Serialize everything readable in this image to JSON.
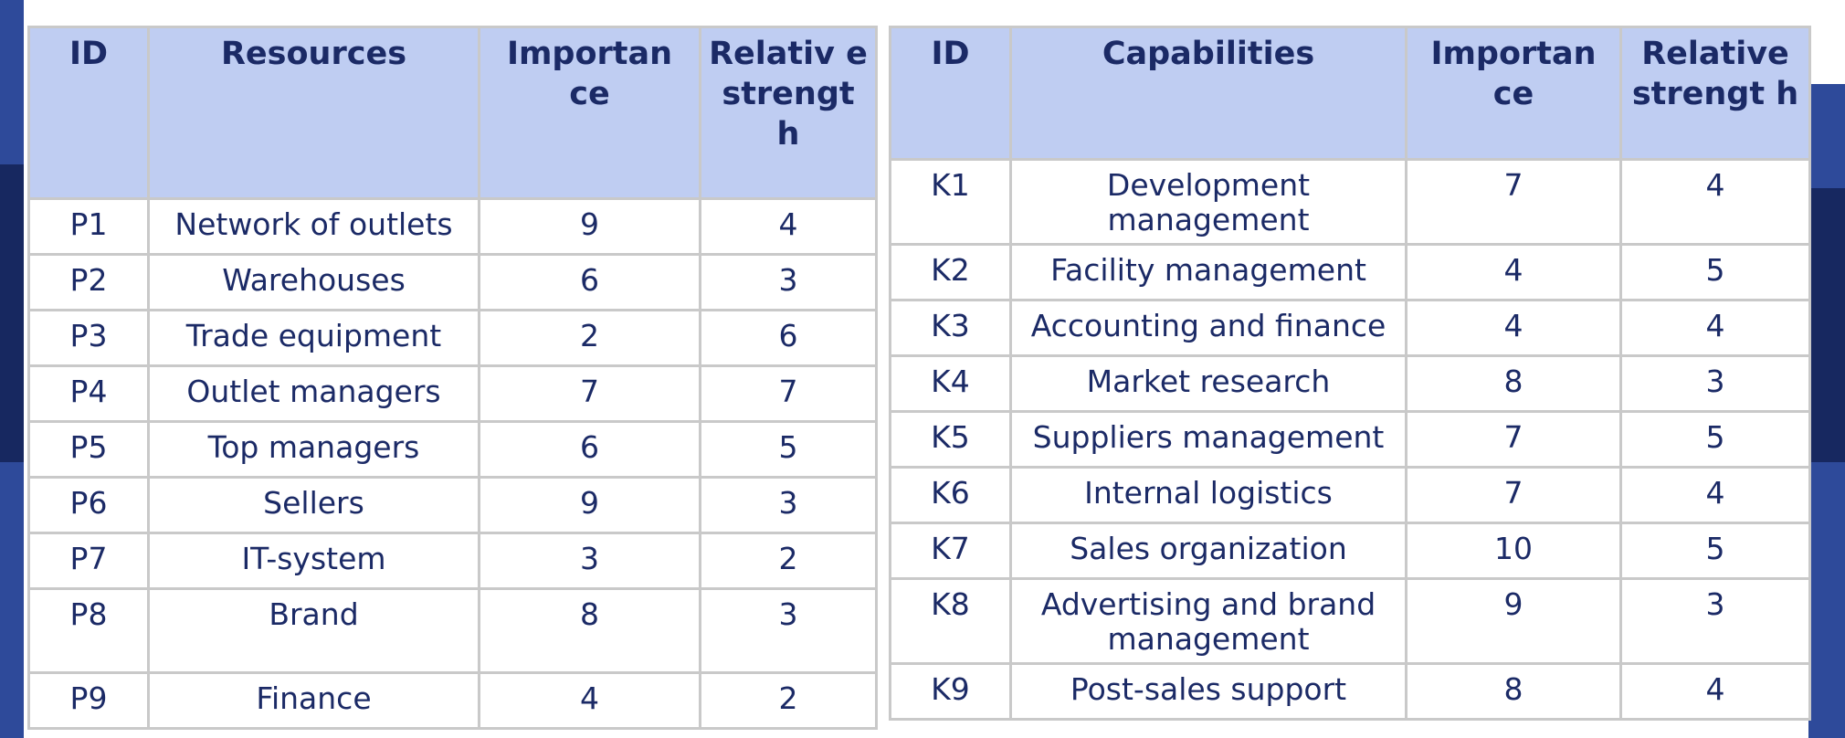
{
  "left_table": {
    "headers": [
      "ID",
      "Resources",
      "Importan ce",
      "Relativ e strengt h"
    ],
    "rows": [
      [
        "P1",
        "Network of outlets",
        "9",
        "4"
      ],
      [
        "P2",
        "Warehouses",
        "6",
        "3"
      ],
      [
        "P3",
        "Trade equipment",
        "2",
        "6"
      ],
      [
        "P4",
        "Outlet managers",
        "7",
        "7"
      ],
      [
        "P5",
        "Top managers",
        "6",
        "5"
      ],
      [
        "P6",
        "Sellers",
        "9",
        "3"
      ],
      [
        "P7",
        "IT-system",
        "3",
        "2"
      ],
      [
        "P8",
        "Brand",
        "8",
        "3"
      ],
      [
        "P9",
        "Finance",
        "4",
        "2"
      ]
    ]
  },
  "right_table": {
    "headers": [
      "ID",
      "Capabilities",
      "Importan ce",
      "Relative strengt h"
    ],
    "rows": [
      [
        "K1",
        "Development management",
        "7",
        "4"
      ],
      [
        "K2",
        "Facility management",
        "4",
        "5"
      ],
      [
        "K3",
        "Accounting and finance",
        "4",
        "4"
      ],
      [
        "K4",
        "Market research",
        "8",
        "3"
      ],
      [
        "K5",
        "Suppliers management",
        "7",
        "5"
      ],
      [
        "K6",
        "Internal logistics",
        "7",
        "4"
      ],
      [
        "K7",
        "Sales organization",
        "10",
        "5"
      ],
      [
        "K8",
        "Advertising and brand management",
        "9",
        "3"
      ],
      [
        "K9",
        "Post-sales support",
        "8",
        "4"
      ]
    ]
  }
}
